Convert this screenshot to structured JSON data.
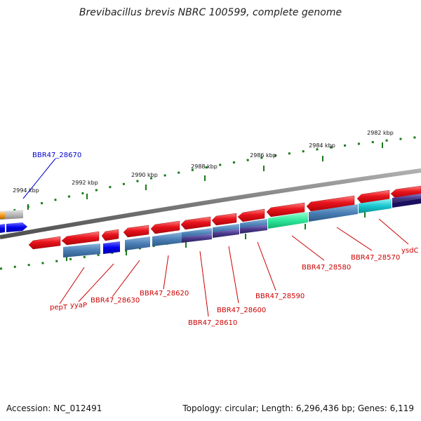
{
  "title": "Brevibacillus brevis NBRC 100599, complete genome",
  "footer": {
    "accession": "Accession: NC_012491",
    "summary": "Topology: circular; Length: 6,296,436 bp; Genes: 6,119"
  },
  "ticks": [
    "2994 kbp",
    "2992 kbp",
    "2990 kbp",
    "2988 kbp",
    "2986 kbp",
    "2984 kbp",
    "2982 kbp"
  ],
  "gene_labels": [
    "BBR47_28670",
    "pepT",
    "yyaP",
    "BBR47_28630",
    "BBR47_28620",
    "BBR47_28610",
    "BBR47_28600",
    "BBR47_28590",
    "BBR47_28580",
    "BBR47_28570",
    "ysdC"
  ],
  "colors": {
    "backbone": "#7a7a7a",
    "gene_arrow": "#e8141c",
    "tick": "#1a7a1a",
    "label_red": "#cc0000",
    "label_blue": "#0000cc",
    "cog_blue": "#0000ee",
    "cog_steel": "#4a7fb5",
    "cog_green": "#2ee89a",
    "cog_cyan": "#18c8d0",
    "cog_purple": "#4c3c8c",
    "cog_orange": "#f39a1e",
    "cog_grey": "#b8b8b8"
  }
}
